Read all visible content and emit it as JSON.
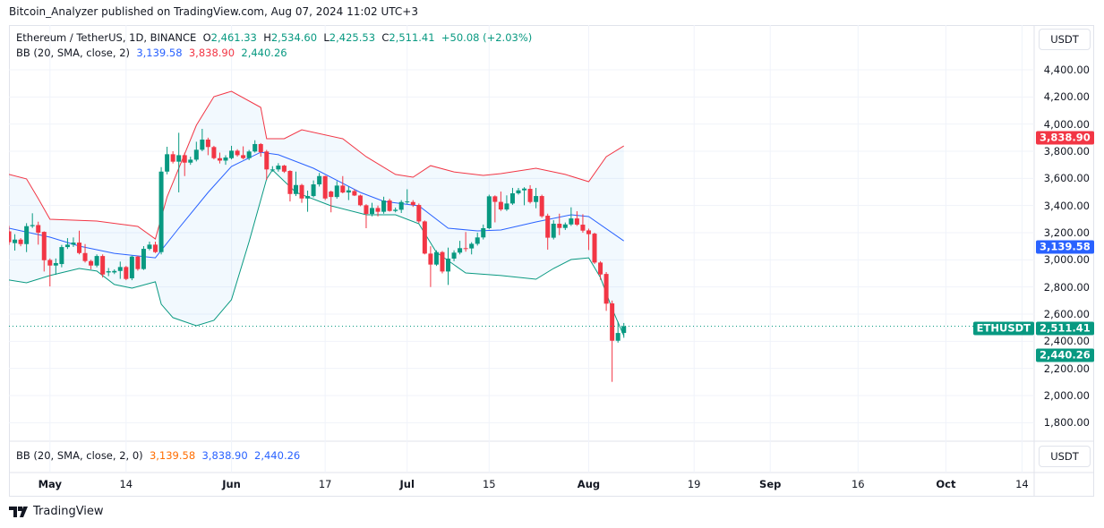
{
  "publisher_line": "Bitcoin_Analyzer published on TradingView.com, Aug 07, 2024 11:02 UTC+3",
  "legend": {
    "symbol": "Ethereum / TetherUS, 1D, BINANCE",
    "o_label": "O",
    "o": "2,461.33",
    "h_label": "H",
    "h": "2,534.60",
    "l_label": "L",
    "l": "2,425.53",
    "c_label": "C",
    "c": "2,511.41",
    "change": "+50.08 (+2.03%)",
    "bb_label": "BB (20, SMA, close, 2)",
    "bb_basis": "3,139.58",
    "bb_upper": "3,838.90",
    "bb_lower": "2,440.26"
  },
  "indicator_pane": {
    "label": "BB (20, SMA, close, 2, 0)",
    "v1": "3,139.58",
    "v2": "3,838.90",
    "v3": "2,440.26"
  },
  "currency_button": "USDT",
  "currency_button_2": "USDT",
  "price_tags": {
    "symbol_tag": "ETHUSDT",
    "last": "2,511.41",
    "upper": "3,838.90",
    "basis": "3,139.58",
    "lower": "2,440.26"
  },
  "brand": "TradingView",
  "colors": {
    "up": "#089981",
    "down": "#f23645",
    "upper": "#f23645",
    "basis": "#2962ff",
    "lower": "#089981",
    "fill": "#2196f3"
  },
  "chart_data": {
    "type": "candlestick",
    "symbol": "ETHUSDT",
    "ylim": [
      1700,
      4500
    ],
    "y_ticks": [
      "4,400.00",
      "4,200.00",
      "4,000.00",
      "3,800.00",
      "3,600.00",
      "3,400.00",
      "3,200.00",
      "3,000.00",
      "2,800.00",
      "2,600.00",
      "2,400.00",
      "2,200.00",
      "2,000.00",
      "1,800.00"
    ],
    "x_ticks": [
      [
        "May",
        "2024-05-01"
      ],
      [
        "14",
        "2024-05-14"
      ],
      [
        "Jun",
        "2024-06-01"
      ],
      [
        "17",
        "2024-06-17"
      ],
      [
        "Jul",
        "2024-07-01"
      ],
      [
        "15",
        "2024-07-15"
      ],
      [
        "Aug",
        "2024-08-01"
      ],
      [
        "19",
        "2024-08-19"
      ],
      [
        "Sep",
        "2024-09-01"
      ],
      [
        "16",
        "2024-09-16"
      ],
      [
        "Oct",
        "2024-10-01"
      ],
      [
        "14",
        "2024-10-14"
      ]
    ],
    "grid": true,
    "candle_columns": [
      "date",
      "open",
      "high",
      "low",
      "close"
    ],
    "candles": [
      [
        "2024-04-24",
        3210,
        3250,
        3110,
        3130
      ],
      [
        "2024-04-25",
        3123,
        3189,
        3068,
        3149
      ],
      [
        "2024-04-26",
        3149,
        3160,
        3100,
        3116
      ],
      [
        "2024-04-27",
        3116,
        3270,
        3057,
        3248
      ],
      [
        "2024-04-28",
        3248,
        3343,
        3235,
        3256
      ],
      [
        "2024-04-29",
        3256,
        3281,
        3112,
        3200
      ],
      [
        "2024-04-30",
        3206,
        3210,
        2914,
        2997
      ],
      [
        "2024-05-01",
        2999,
        3010,
        2804,
        2958
      ],
      [
        "2024-05-02",
        2958,
        3010,
        2890,
        2976
      ],
      [
        "2024-05-03",
        2969,
        3110,
        2945,
        3094
      ],
      [
        "2024-05-04",
        3094,
        3160,
        3080,
        3112
      ],
      [
        "2024-05-05",
        3112,
        3165,
        3095,
        3127
      ],
      [
        "2024-05-06",
        3127,
        3215,
        3040,
        3050
      ],
      [
        "2024-05-07",
        3050,
        3116,
        2980,
        2991
      ],
      [
        "2024-05-08",
        2991,
        3000,
        2930,
        2958
      ],
      [
        "2024-05-09",
        2958,
        3040,
        2945,
        3028
      ],
      [
        "2024-05-10",
        3028,
        3040,
        2870,
        2892
      ],
      [
        "2024-05-11",
        2907,
        2940,
        2880,
        2916
      ],
      [
        "2024-05-12",
        2907,
        2930,
        2895,
        2918
      ],
      [
        "2024-05-13",
        2918,
        2987,
        2860,
        2947
      ],
      [
        "2024-05-14",
        2947,
        2955,
        2850,
        2859
      ],
      [
        "2024-05-15",
        2864,
        3030,
        2850,
        3024
      ],
      [
        "2024-05-16",
        3024,
        3030,
        2920,
        2932
      ],
      [
        "2024-05-17",
        2932,
        3101,
        2925,
        3081
      ],
      [
        "2024-05-18",
        3081,
        3134,
        3070,
        3112
      ],
      [
        "2024-05-19",
        3112,
        3134,
        3050,
        3057
      ],
      [
        "2024-05-20",
        3057,
        3683,
        3040,
        3650
      ],
      [
        "2024-05-21",
        3650,
        3833,
        3630,
        3778
      ],
      [
        "2024-05-22",
        3778,
        3800,
        3710,
        3723
      ],
      [
        "2024-05-23",
        3723,
        3936,
        3497,
        3771
      ],
      [
        "2024-05-24",
        3771,
        3790,
        3617,
        3716
      ],
      [
        "2024-05-25",
        3716,
        3760,
        3700,
        3738
      ],
      [
        "2024-05-26",
        3738,
        3870,
        3725,
        3811
      ],
      [
        "2024-05-27",
        3811,
        3965,
        3800,
        3886
      ],
      [
        "2024-05-28",
        3886,
        3900,
        3771,
        3831
      ],
      [
        "2024-05-29",
        3831,
        3840,
        3740,
        3749
      ],
      [
        "2024-05-30",
        3749,
        3790,
        3710,
        3731
      ],
      [
        "2024-05-31",
        3731,
        3770,
        3700,
        3754
      ],
      [
        "2024-06-01",
        3749,
        3840,
        3740,
        3804
      ],
      [
        "2024-06-02",
        3804,
        3815,
        3760,
        3771
      ],
      [
        "2024-06-03",
        3771,
        3836,
        3740,
        3749
      ],
      [
        "2024-06-04",
        3749,
        3810,
        3735,
        3798
      ],
      [
        "2024-06-05",
        3798,
        3881,
        3790,
        3853
      ],
      [
        "2024-06-06",
        3853,
        3860,
        3760,
        3793
      ],
      [
        "2024-06-07",
        3798,
        3810,
        3589,
        3666
      ],
      [
        "2024-06-08",
        3666,
        3690,
        3650,
        3666
      ],
      [
        "2024-06-09",
        3666,
        3712,
        3650,
        3694
      ],
      [
        "2024-06-10",
        3694,
        3700,
        3640,
        3650
      ],
      [
        "2024-06-11",
        3655,
        3660,
        3430,
        3485
      ],
      [
        "2024-06-12",
        3485,
        3650,
        3470,
        3551
      ],
      [
        "2024-06-13",
        3551,
        3560,
        3420,
        3452
      ],
      [
        "2024-06-14",
        3452,
        3510,
        3354,
        3470
      ],
      [
        "2024-06-15",
        3470,
        3585,
        3460,
        3556
      ],
      [
        "2024-06-16",
        3556,
        3640,
        3540,
        3617
      ],
      [
        "2024-06-17",
        3617,
        3620,
        3440,
        3452
      ],
      [
        "2024-06-18",
        3503,
        3510,
        3350,
        3463
      ],
      [
        "2024-06-19",
        3463,
        3580,
        3450,
        3547
      ],
      [
        "2024-06-20",
        3547,
        3617,
        3490,
        3496
      ],
      [
        "2024-06-21",
        3496,
        3540,
        3440,
        3512
      ],
      [
        "2024-06-22",
        3507,
        3520,
        3470,
        3474
      ],
      [
        "2024-06-23",
        3474,
        3480,
        3395,
        3402
      ],
      [
        "2024-06-24",
        3402,
        3410,
        3233,
        3338
      ],
      [
        "2024-06-25",
        3338,
        3420,
        3320,
        3382
      ],
      [
        "2024-06-26",
        3382,
        3400,
        3320,
        3354
      ],
      [
        "2024-06-27",
        3354,
        3465,
        3340,
        3437
      ],
      [
        "2024-06-28",
        3437,
        3450,
        3355,
        3360
      ],
      [
        "2024-06-29",
        3360,
        3385,
        3350,
        3369
      ],
      [
        "2024-06-30",
        3369,
        3440,
        3345,
        3426
      ],
      [
        "2024-07-01",
        3426,
        3520,
        3410,
        3430
      ],
      [
        "2024-07-02",
        3426,
        3440,
        3390,
        3404
      ],
      [
        "2024-07-03",
        3404,
        3415,
        3270,
        3283
      ],
      [
        "2024-07-04",
        3283,
        3290,
        3040,
        3046
      ],
      [
        "2024-07-05",
        3046,
        3100,
        2800,
        2965
      ],
      [
        "2024-07-06",
        2965,
        3070,
        2955,
        3057
      ],
      [
        "2024-07-07",
        3057,
        3065,
        2900,
        2914
      ],
      [
        "2024-07-08",
        2914,
        3090,
        2815,
        3009
      ],
      [
        "2024-07-09",
        3009,
        3070,
        2990,
        3053
      ],
      [
        "2024-07-10",
        3053,
        3140,
        3040,
        3086
      ],
      [
        "2024-07-11",
        3086,
        3205,
        3060,
        3084
      ],
      [
        "2024-07-12",
        3084,
        3130,
        3040,
        3118
      ],
      [
        "2024-07-13",
        3118,
        3200,
        3105,
        3165
      ],
      [
        "2024-07-14",
        3165,
        3260,
        3150,
        3233
      ],
      [
        "2024-07-15",
        3233,
        3480,
        3225,
        3468
      ],
      [
        "2024-07-16",
        3468,
        3475,
        3276,
        3427
      ],
      [
        "2024-07-17",
        3427,
        3503,
        3360,
        3371
      ],
      [
        "2024-07-18",
        3371,
        3475,
        3360,
        3415
      ],
      [
        "2024-07-19",
        3415,
        3530,
        3405,
        3490
      ],
      [
        "2024-07-20",
        3490,
        3530,
        3480,
        3512
      ],
      [
        "2024-07-21",
        3512,
        3535,
        3402,
        3525
      ],
      [
        "2024-07-22",
        3523,
        3550,
        3415,
        3426
      ],
      [
        "2024-07-23",
        3426,
        3530,
        3380,
        3470
      ],
      [
        "2024-07-24",
        3470,
        3480,
        3310,
        3321
      ],
      [
        "2024-07-25",
        3325,
        3340,
        3075,
        3163
      ],
      [
        "2024-07-26",
        3163,
        3292,
        3150,
        3266
      ],
      [
        "2024-07-27",
        3266,
        3340,
        3182,
        3235
      ],
      [
        "2024-07-28",
        3235,
        3275,
        3220,
        3261
      ],
      [
        "2024-07-29",
        3261,
        3387,
        3250,
        3305
      ],
      [
        "2024-07-30",
        3305,
        3358,
        3250,
        3259
      ],
      [
        "2024-07-31",
        3259,
        3336,
        3200,
        3215
      ],
      [
        "2024-08-01",
        3217,
        3230,
        3072,
        3189
      ],
      [
        "2024-08-02",
        3193,
        3200,
        2970,
        2980
      ],
      [
        "2024-08-03",
        2980,
        2990,
        2853,
        2892
      ],
      [
        "2024-08-04",
        2896,
        2910,
        2624,
        2677
      ],
      [
        "2024-08-05",
        2679,
        2700,
        2101,
        2404
      ],
      [
        "2024-08-06",
        2404,
        2545,
        2390,
        2461
      ],
      [
        "2024-08-07",
        2461.33,
        2534.6,
        2425.53,
        2511.41
      ]
    ],
    "bollinger": {
      "upper": [
        [
          "2024-04-24",
          3629
        ],
        [
          "2024-04-27",
          3596
        ],
        [
          "2024-04-29",
          3451
        ],
        [
          "2024-05-01",
          3299
        ],
        [
          "2024-05-09",
          3286
        ],
        [
          "2024-05-16",
          3246
        ],
        [
          "2024-05-19",
          3154
        ],
        [
          "2024-05-21",
          3464
        ],
        [
          "2024-05-26",
          3991
        ],
        [
          "2024-05-29",
          4202
        ],
        [
          "2024-06-01",
          4242
        ],
        [
          "2024-06-06",
          4123
        ],
        [
          "2024-06-07",
          3892
        ],
        [
          "2024-06-10",
          3892
        ],
        [
          "2024-06-13",
          3958
        ],
        [
          "2024-06-20",
          3892
        ],
        [
          "2024-06-24",
          3760
        ],
        [
          "2024-06-29",
          3629
        ],
        [
          "2024-07-02",
          3609
        ],
        [
          "2024-07-05",
          3694
        ],
        [
          "2024-07-09",
          3648
        ],
        [
          "2024-07-14",
          3622
        ],
        [
          "2024-07-17",
          3635
        ],
        [
          "2024-07-23",
          3675
        ],
        [
          "2024-07-28",
          3629
        ],
        [
          "2024-08-01",
          3576
        ],
        [
          "2024-08-04",
          3760
        ],
        [
          "2024-08-07",
          3838.9
        ]
      ],
      "basis": [
        [
          "2024-04-24",
          3233
        ],
        [
          "2024-05-01",
          3167
        ],
        [
          "2024-05-06",
          3101
        ],
        [
          "2024-05-12",
          3048
        ],
        [
          "2024-05-19",
          3015
        ],
        [
          "2024-05-23",
          3233
        ],
        [
          "2024-05-28",
          3497
        ],
        [
          "2024-06-01",
          3688
        ],
        [
          "2024-06-06",
          3793
        ],
        [
          "2024-06-09",
          3774
        ],
        [
          "2024-06-15",
          3675
        ],
        [
          "2024-06-23",
          3497
        ],
        [
          "2024-06-27",
          3431
        ],
        [
          "2024-07-03",
          3398
        ],
        [
          "2024-07-08",
          3233
        ],
        [
          "2024-07-13",
          3213
        ],
        [
          "2024-07-17",
          3220
        ],
        [
          "2024-07-23",
          3279
        ],
        [
          "2024-07-29",
          3332
        ],
        [
          "2024-08-01",
          3319
        ],
        [
          "2024-08-07",
          3139.58
        ]
      ],
      "lower": [
        [
          "2024-04-24",
          2851
        ],
        [
          "2024-04-27",
          2831
        ],
        [
          "2024-05-01",
          2884
        ],
        [
          "2024-05-06",
          2936
        ],
        [
          "2024-05-09",
          2917
        ],
        [
          "2024-05-12",
          2818
        ],
        [
          "2024-05-15",
          2791
        ],
        [
          "2024-05-19",
          2838
        ],
        [
          "2024-05-20",
          2673
        ],
        [
          "2024-05-22",
          2574
        ],
        [
          "2024-05-26",
          2514
        ],
        [
          "2024-05-29",
          2554
        ],
        [
          "2024-06-01",
          2706
        ],
        [
          "2024-06-04",
          3134
        ],
        [
          "2024-06-07",
          3596
        ],
        [
          "2024-06-08",
          3662
        ],
        [
          "2024-06-12",
          3497
        ],
        [
          "2024-06-18",
          3398
        ],
        [
          "2024-06-24",
          3332
        ],
        [
          "2024-06-29",
          3332
        ],
        [
          "2024-07-03",
          3266
        ],
        [
          "2024-07-06",
          3055
        ],
        [
          "2024-07-11",
          2903
        ],
        [
          "2024-07-17",
          2884
        ],
        [
          "2024-07-23",
          2857
        ],
        [
          "2024-07-26",
          2936
        ],
        [
          "2024-07-29",
          3002
        ],
        [
          "2024-08-01",
          3015
        ],
        [
          "2024-08-03",
          2870
        ],
        [
          "2024-08-05",
          2640
        ],
        [
          "2024-08-07",
          2440.26
        ]
      ]
    }
  }
}
